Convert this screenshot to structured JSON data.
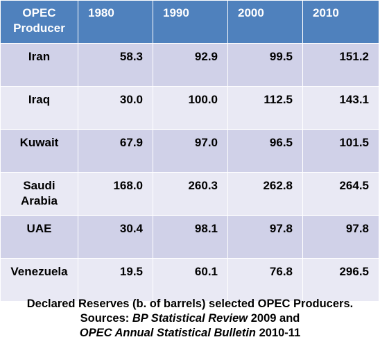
{
  "table": {
    "header_producer": [
      "OPEC",
      "Producer"
    ],
    "years": [
      "1980",
      "1990",
      "2000",
      "2010"
    ],
    "rows": [
      {
        "name": [
          "Iran"
        ],
        "values": [
          "58.3",
          "92.9",
          "99.5",
          "151.2"
        ]
      },
      {
        "name": [
          "Iraq"
        ],
        "values": [
          "30.0",
          "100.0",
          "112.5",
          "143.1"
        ]
      },
      {
        "name": [
          "Kuwait"
        ],
        "values": [
          "67.9",
          "97.0",
          "96.5",
          "101.5"
        ]
      },
      {
        "name": [
          "Saudi",
          "Arabia"
        ],
        "values": [
          "168.0",
          "260.3",
          "262.8",
          "264.5"
        ]
      },
      {
        "name": [
          "UAE"
        ],
        "values": [
          "30.4",
          "98.1",
          "97.8",
          "97.8"
        ]
      },
      {
        "name": [
          "Venezuela"
        ],
        "values": [
          "19.5",
          "60.1",
          "76.8",
          "296.5"
        ]
      }
    ]
  },
  "caption": {
    "line1": "Declared Reserves (b. of barrels) selected OPEC Producers.",
    "line2_prefix": "Sources: ",
    "line2_source": "BP Statistical Review",
    "line2_suffix": " 2009 and",
    "line3_source": "OPEC Annual Statistical Bulletin",
    "line3_suffix": " 2010-11"
  },
  "colors": {
    "header_bg": "#4f81bd",
    "row_odd_bg": "#d0d1e8",
    "row_even_bg": "#e9e9f4"
  }
}
